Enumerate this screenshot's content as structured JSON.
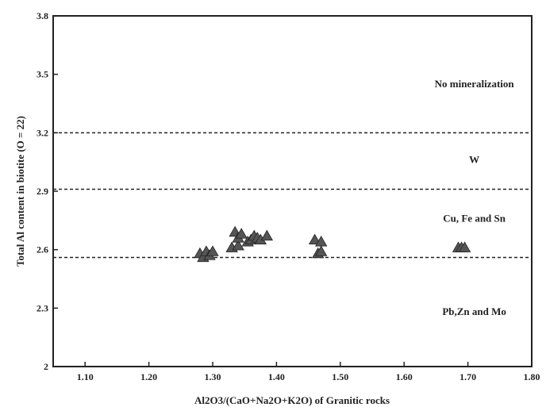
{
  "chart_data": {
    "type": "scatter",
    "xlabel": "Al2O3/(CaO+Na2O+K2O) of Granitic rocks",
    "ylabel": "Total Al content in biotite (O = 22)",
    "xlim": [
      1.05,
      1.8
    ],
    "ylim": [
      2.0,
      3.8
    ],
    "x_ticks": [
      {
        "value": 1.1,
        "label": "1.10"
      },
      {
        "value": 1.2,
        "label": "1.20"
      },
      {
        "value": 1.3,
        "label": "1.30"
      },
      {
        "value": 1.4,
        "label": "1.40"
      },
      {
        "value": 1.5,
        "label": "1.50"
      },
      {
        "value": 1.6,
        "label": "1.60"
      },
      {
        "value": 1.7,
        "label": "1.70"
      },
      {
        "value": 1.8,
        "label": "1.80"
      }
    ],
    "y_ticks": [
      {
        "value": 2.0,
        "label": "2"
      },
      {
        "value": 2.3,
        "label": "2.3"
      },
      {
        "value": 2.6,
        "label": "2.6"
      },
      {
        "value": 2.9,
        "label": "2.9"
      },
      {
        "value": 3.2,
        "label": "3.2"
      },
      {
        "value": 3.5,
        "label": "3.5"
      },
      {
        "value": 3.8,
        "label": "3.8"
      }
    ],
    "boundaries": [
      3.2,
      2.91,
      2.56
    ],
    "regions": [
      {
        "label": "No mineralization",
        "x": 1.71,
        "y": 3.45
      },
      {
        "label": "W",
        "x": 1.71,
        "y": 3.06
      },
      {
        "label": "Cu, Fe and Sn",
        "x": 1.71,
        "y": 2.76
      },
      {
        "label": "Pb,Zn and Mo",
        "x": 1.71,
        "y": 2.28
      }
    ],
    "marker": "triangle",
    "marker_color": "#555555",
    "points": [
      {
        "x": 1.28,
        "y": 2.58
      },
      {
        "x": 1.285,
        "y": 2.56
      },
      {
        "x": 1.29,
        "y": 2.59
      },
      {
        "x": 1.295,
        "y": 2.57
      },
      {
        "x": 1.3,
        "y": 2.59
      },
      {
        "x": 1.33,
        "y": 2.61
      },
      {
        "x": 1.34,
        "y": 2.62
      },
      {
        "x": 1.335,
        "y": 2.69
      },
      {
        "x": 1.34,
        "y": 2.66
      },
      {
        "x": 1.345,
        "y": 2.68
      },
      {
        "x": 1.355,
        "y": 2.64
      },
      {
        "x": 1.36,
        "y": 2.65
      },
      {
        "x": 1.365,
        "y": 2.67
      },
      {
        "x": 1.37,
        "y": 2.66
      },
      {
        "x": 1.375,
        "y": 2.65
      },
      {
        "x": 1.385,
        "y": 2.67
      },
      {
        "x": 1.46,
        "y": 2.65
      },
      {
        "x": 1.47,
        "y": 2.64
      },
      {
        "x": 1.465,
        "y": 2.58
      },
      {
        "x": 1.47,
        "y": 2.59
      },
      {
        "x": 1.685,
        "y": 2.61
      },
      {
        "x": 1.69,
        "y": 2.61
      },
      {
        "x": 1.695,
        "y": 2.61
      }
    ]
  }
}
